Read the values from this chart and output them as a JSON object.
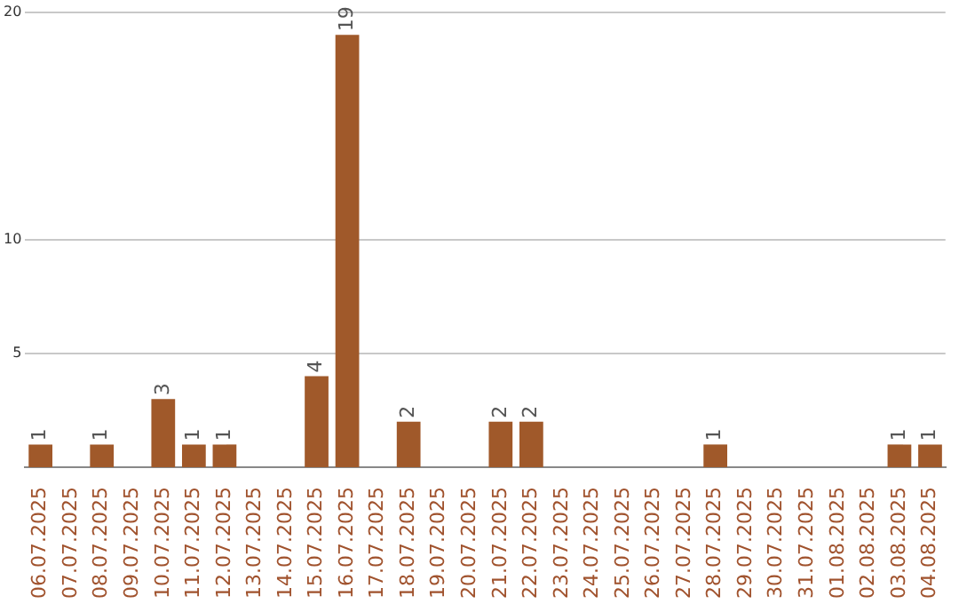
{
  "chart_data": {
    "type": "bar",
    "categories": [
      "06.07.2025",
      "07.07.2025",
      "08.07.2025",
      "09.07.2025",
      "10.07.2025",
      "11.07.2025",
      "12.07.2025",
      "13.07.2025",
      "14.07.2025",
      "15.07.2025",
      "16.07.2025",
      "17.07.2025",
      "18.07.2025",
      "19.07.2025",
      "20.07.2025",
      "21.07.2025",
      "22.07.2025",
      "23.07.2025",
      "24.07.2025",
      "25.07.2025",
      "26.07.2025",
      "27.07.2025",
      "28.07.2025",
      "29.07.2025",
      "30.07.2025",
      "31.07.2025",
      "01.08.2025",
      "02.08.2025",
      "03.08.2025",
      "04.08.2025"
    ],
    "values": [
      1,
      0,
      1,
      0,
      3,
      1,
      1,
      0,
      0,
      4,
      19,
      0,
      2,
      0,
      0,
      2,
      2,
      0,
      0,
      0,
      0,
      0,
      1,
      0,
      0,
      0,
      0,
      0,
      1,
      1
    ],
    "value_labels": [
      "1",
      null,
      "1",
      null,
      "3",
      "1",
      "1",
      null,
      null,
      "4",
      "19",
      null,
      "2",
      null,
      null,
      "2",
      "2",
      null,
      null,
      null,
      null,
      null,
      "1",
      null,
      null,
      null,
      null,
      null,
      "1",
      "1"
    ],
    "color": "#a0592a",
    "ylim": [
      0,
      20
    ],
    "yticks": [
      5,
      10,
      20
    ],
    "grid": "y",
    "legend": false
  }
}
